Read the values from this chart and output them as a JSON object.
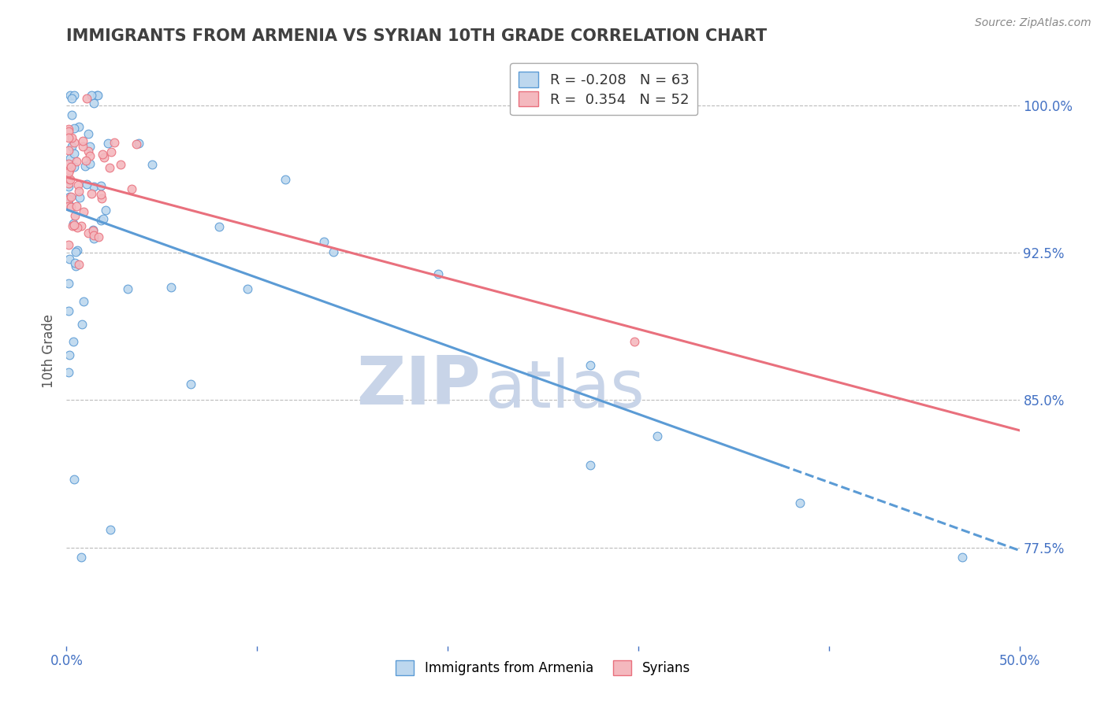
{
  "title": "IMMIGRANTS FROM ARMENIA VS SYRIAN 10TH GRADE CORRELATION CHART",
  "source_text": "Source: ZipAtlas.com",
  "ylabel": "10th Grade",
  "watermark_zip": "ZIP",
  "watermark_atlas": "atlas",
  "xlim": [
    0.0,
    0.5
  ],
  "ylim": [
    0.725,
    1.025
  ],
  "yticks": [
    0.775,
    0.85,
    0.925,
    1.0
  ],
  "ytick_labels_right": [
    "77.5%",
    "85.0%",
    "92.5%",
    "100.0%"
  ],
  "xticks": [
    0.0,
    0.1,
    0.2,
    0.3,
    0.4,
    0.5
  ],
  "xtick_labels": [
    "0.0%",
    "",
    "",
    "",
    "",
    "50.0%"
  ],
  "armenia_color": "#5b9bd5",
  "armenia_color_fill": "#bdd7ee",
  "syria_color": "#e9707d",
  "syria_color_fill": "#f4b8be",
  "armenia_R": -0.208,
  "armenia_N": 63,
  "syria_R": 0.354,
  "syria_N": 52,
  "legend_label_armenia": "Immigrants from Armenia",
  "legend_label_syria": "Syrians",
  "grid_color": "#bbbbbb",
  "axis_color": "#4472c4",
  "title_color": "#404040",
  "source_color": "#888888",
  "watermark_color": "#c8d4e8"
}
